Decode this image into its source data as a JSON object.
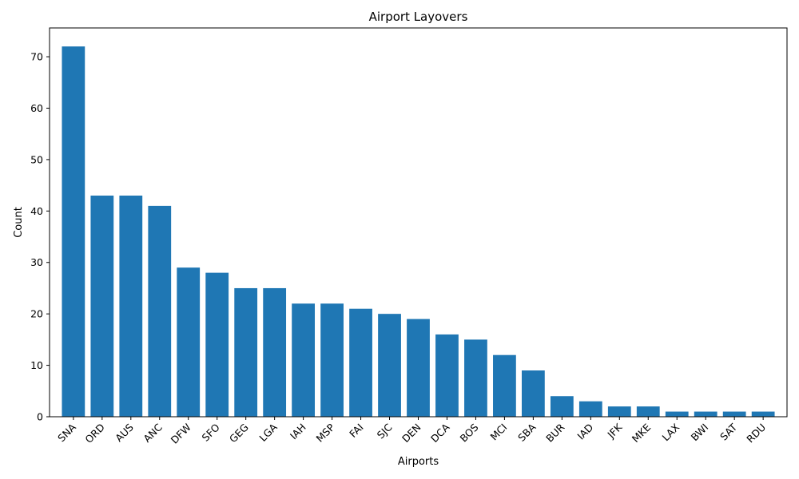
{
  "chart_data": {
    "type": "bar",
    "title": "Airport Layovers",
    "xlabel": "Airports",
    "ylabel": "Count",
    "ylim": [
      0,
      75.6
    ],
    "yticks": [
      0,
      10,
      20,
      30,
      40,
      50,
      60,
      70
    ],
    "grid": false,
    "bar_color": "#1f77b4",
    "categories": [
      "SNA",
      "ORD",
      "AUS",
      "ANC",
      "DFW",
      "SFO",
      "GEG",
      "LGA",
      "IAH",
      "MSP",
      "FAI",
      "SJC",
      "DEN",
      "DCA",
      "BOS",
      "MCI",
      "SBA",
      "BUR",
      "IAD",
      "JFK",
      "MKE",
      "LAX",
      "BWI",
      "SAT",
      "RDU"
    ],
    "values": [
      72,
      43,
      43,
      41,
      29,
      28,
      25,
      25,
      22,
      22,
      21,
      20,
      19,
      16,
      15,
      12,
      9,
      4,
      3,
      2,
      2,
      1,
      1,
      1,
      1
    ]
  }
}
